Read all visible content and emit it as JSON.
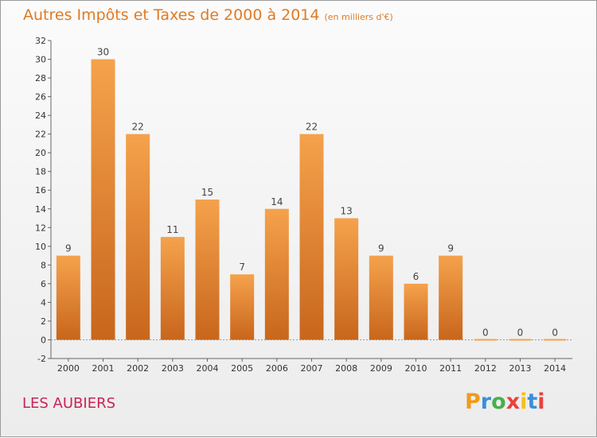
{
  "chart_data": {
    "type": "bar",
    "title": "Autres Impôts et Taxes de 2000 à 2014",
    "unit": "(en milliers d'€)",
    "categories": [
      "2000",
      "2001",
      "2002",
      "2003",
      "2004",
      "2005",
      "2006",
      "2007",
      "2008",
      "2009",
      "2010",
      "2011",
      "2012",
      "2013",
      "2014"
    ],
    "values": [
      9,
      30,
      22,
      11,
      15,
      7,
      14,
      22,
      13,
      9,
      6,
      9,
      0,
      0,
      0
    ],
    "data_labels": [
      "9",
      "30",
      "22",
      "11",
      "15",
      "7",
      "14",
      "22",
      "13",
      "9",
      "6",
      "9",
      "0",
      "0",
      "0"
    ],
    "ylim": [
      -2,
      32
    ],
    "yticks": [
      -2,
      0,
      2,
      4,
      6,
      8,
      10,
      12,
      14,
      16,
      18,
      20,
      22,
      24,
      26,
      28,
      30,
      32
    ],
    "ytick_labels": [
      "-2",
      "0",
      "2",
      "4",
      "6",
      "8",
      "10",
      "12",
      "14",
      "16",
      "18",
      "20",
      "22",
      "24",
      "26",
      "28",
      "30",
      "32"
    ],
    "grid": false,
    "legend": "none",
    "bar_color_top": "#f5a24c",
    "bar_color_bottom": "#c8661c"
  },
  "footer": {
    "commune": "LES AUBIERS",
    "logo_letters": [
      "P",
      "r",
      "o",
      "x",
      "i",
      "t",
      "i"
    ]
  }
}
